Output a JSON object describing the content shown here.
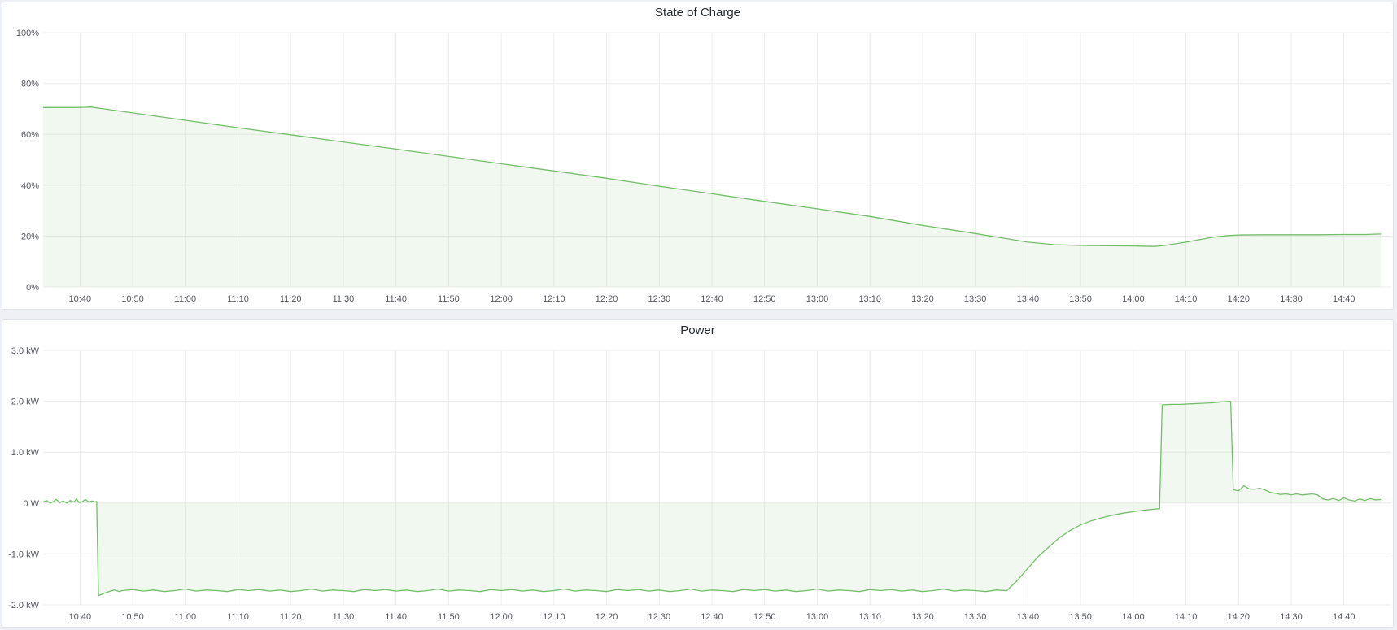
{
  "colors": {
    "series_green": "#73bf69",
    "series_fill": "rgba(115,191,105,0.10)",
    "grid": "#ececec",
    "tick_text": "#55585f",
    "title_text": "#24292e",
    "panel_bg": "#ffffff",
    "panel_border": "#dfe2ea",
    "page_bg": "#eef0f6"
  },
  "panels": [
    {
      "title": "State of Charge"
    },
    {
      "title": "Power"
    }
  ],
  "chart_data": [
    {
      "type": "area",
      "title": "State of Charge",
      "xlabel": "",
      "ylabel": "",
      "unit": "percent",
      "legend": "none",
      "grid": "on",
      "ylim": [
        0,
        100
      ],
      "y_ticks": [
        {
          "v": 0,
          "label": "0%"
        },
        {
          "v": 20,
          "label": "20%"
        },
        {
          "v": 40,
          "label": "40%"
        },
        {
          "v": 60,
          "label": "60%"
        },
        {
          "v": 80,
          "label": "80%"
        },
        {
          "v": 100,
          "label": "100%"
        }
      ],
      "x_domain": [
        "10:33",
        "14:49"
      ],
      "x_tick_labels": [
        "10:40",
        "10:50",
        "11:00",
        "11:10",
        "11:20",
        "11:30",
        "11:40",
        "11:50",
        "12:00",
        "12:10",
        "12:20",
        "12:30",
        "12:40",
        "12:50",
        "13:00",
        "13:10",
        "13:20",
        "13:30",
        "13:40",
        "13:50",
        "14:00",
        "14:10",
        "14:20",
        "14:30",
        "14:40"
      ],
      "line_color": "#73bf69",
      "fill_color": "rgba(115,191,105,0.10)",
      "points": [
        [
          "10:33",
          70.5
        ],
        [
          "10:36",
          70.5
        ],
        [
          "10:39",
          70.5
        ],
        [
          "10:41",
          70.6
        ],
        [
          "10:42",
          70.7
        ],
        [
          "10:50",
          68.4
        ],
        [
          "11:00",
          65.5
        ],
        [
          "11:10",
          62.6
        ],
        [
          "11:20",
          59.8
        ],
        [
          "11:30",
          57.0
        ],
        [
          "11:40",
          54.2
        ],
        [
          "11:50",
          51.3
        ],
        [
          "12:00",
          48.4
        ],
        [
          "12:10",
          45.6
        ],
        [
          "12:20",
          42.7
        ],
        [
          "12:30",
          39.6
        ],
        [
          "12:40",
          36.6
        ],
        [
          "12:50",
          33.6
        ],
        [
          "13:00",
          30.7
        ],
        [
          "13:10",
          27.7
        ],
        [
          "13:20",
          24.2
        ],
        [
          "13:25",
          22.6
        ],
        [
          "13:30",
          21.0
        ],
        [
          "13:35",
          19.3
        ],
        [
          "13:40",
          17.6
        ],
        [
          "13:45",
          16.6
        ],
        [
          "13:50",
          16.3
        ],
        [
          "13:55",
          16.2
        ],
        [
          "14:00",
          16.1
        ],
        [
          "14:04",
          15.9
        ],
        [
          "14:06",
          16.3
        ],
        [
          "14:10",
          17.6
        ],
        [
          "14:15",
          19.5
        ],
        [
          "14:18",
          20.2
        ],
        [
          "14:20",
          20.4
        ],
        [
          "14:25",
          20.5
        ],
        [
          "14:30",
          20.5
        ],
        [
          "14:35",
          20.5
        ],
        [
          "14:40",
          20.6
        ],
        [
          "14:44",
          20.6
        ],
        [
          "14:47",
          20.8
        ]
      ]
    },
    {
      "type": "area",
      "title": "Power",
      "xlabel": "",
      "ylabel": "",
      "unit": "watt",
      "legend": "none",
      "grid": "on",
      "ylim": [
        -2,
        3
      ],
      "y_ticks": [
        {
          "v": -2,
          "label": "-2.0 kW"
        },
        {
          "v": -1,
          "label": "-1.0 kW"
        },
        {
          "v": 0,
          "label": "0 W"
        },
        {
          "v": 1,
          "label": "1.0 kW"
        },
        {
          "v": 2,
          "label": "2.0 kW"
        },
        {
          "v": 3,
          "label": "3.0 kW"
        }
      ],
      "x_domain": [
        "10:33",
        "14:49"
      ],
      "x_tick_labels": [
        "10:40",
        "10:50",
        "11:00",
        "11:10",
        "11:20",
        "11:30",
        "11:40",
        "11:50",
        "12:00",
        "12:10",
        "12:20",
        "12:30",
        "12:40",
        "12:50",
        "13:00",
        "13:10",
        "13:20",
        "13:30",
        "13:40",
        "13:50",
        "14:00",
        "14:10",
        "14:20",
        "14:30",
        "14:40"
      ],
      "line_color": "#73bf69",
      "fill_color": "rgba(115,191,105,0.10)",
      "points": [
        [
          "10:33:00",
          0.02
        ],
        [
          "10:33:40",
          0.05
        ],
        [
          "10:34:20",
          0.0
        ],
        [
          "10:35:00",
          0.03
        ],
        [
          "10:35:30",
          0.07
        ],
        [
          "10:36:10",
          0.01
        ],
        [
          "10:36:50",
          0.04
        ],
        [
          "10:37:30",
          0.0
        ],
        [
          "10:38:10",
          0.05
        ],
        [
          "10:38:50",
          0.02
        ],
        [
          "10:39:20",
          0.08
        ],
        [
          "10:39:50",
          0.01
        ],
        [
          "10:40:30",
          0.03
        ],
        [
          "10:41:00",
          0.07
        ],
        [
          "10:41:40",
          0.02
        ],
        [
          "10:42:20",
          0.04
        ],
        [
          "10:42:50",
          0.02
        ],
        [
          "10:43:10",
          0.03
        ],
        [
          "10:43:30",
          -1.82
        ],
        [
          "10:44:00",
          -1.8
        ],
        [
          "10:44:40",
          -1.77
        ],
        [
          "10:45:30",
          -1.74
        ],
        [
          "10:46:30",
          -1.71
        ],
        [
          "10:47:30",
          -1.74
        ],
        [
          "10:48",
          -1.72
        ],
        [
          "10:50",
          -1.7
        ],
        [
          "10:52",
          -1.73
        ],
        [
          "10:54",
          -1.71
        ],
        [
          "10:56",
          -1.74
        ],
        [
          "10:58",
          -1.72
        ],
        [
          "11:00",
          -1.69
        ],
        [
          "11:02",
          -1.73
        ],
        [
          "11:04",
          -1.71
        ],
        [
          "11:06",
          -1.72
        ],
        [
          "11:08",
          -1.74
        ],
        [
          "11:10",
          -1.7
        ],
        [
          "11:12",
          -1.72
        ],
        [
          "11:14",
          -1.7
        ],
        [
          "11:16",
          -1.73
        ],
        [
          "11:18",
          -1.71
        ],
        [
          "11:20",
          -1.74
        ],
        [
          "11:22",
          -1.72
        ],
        [
          "11:24",
          -1.69
        ],
        [
          "11:26",
          -1.73
        ],
        [
          "11:28",
          -1.71
        ],
        [
          "11:30",
          -1.72
        ],
        [
          "11:32",
          -1.74
        ],
        [
          "11:34",
          -1.7
        ],
        [
          "11:36",
          -1.72
        ],
        [
          "11:38",
          -1.7
        ],
        [
          "11:40",
          -1.73
        ],
        [
          "11:42",
          -1.71
        ],
        [
          "11:44",
          -1.74
        ],
        [
          "11:46",
          -1.72
        ],
        [
          "11:48",
          -1.69
        ],
        [
          "11:50",
          -1.73
        ],
        [
          "11:52",
          -1.71
        ],
        [
          "11:54",
          -1.72
        ],
        [
          "11:56",
          -1.74
        ],
        [
          "11:58",
          -1.7
        ],
        [
          "12:00",
          -1.72
        ],
        [
          "12:02",
          -1.7
        ],
        [
          "12:04",
          -1.73
        ],
        [
          "12:06",
          -1.71
        ],
        [
          "12:08",
          -1.74
        ],
        [
          "12:10",
          -1.72
        ],
        [
          "12:12",
          -1.69
        ],
        [
          "12:14",
          -1.73
        ],
        [
          "12:16",
          -1.71
        ],
        [
          "12:18",
          -1.72
        ],
        [
          "12:20",
          -1.74
        ],
        [
          "12:22",
          -1.7
        ],
        [
          "12:24",
          -1.72
        ],
        [
          "12:26",
          -1.7
        ],
        [
          "12:28",
          -1.73
        ],
        [
          "12:30",
          -1.71
        ],
        [
          "12:32",
          -1.74
        ],
        [
          "12:34",
          -1.72
        ],
        [
          "12:36",
          -1.69
        ],
        [
          "12:38",
          -1.73
        ],
        [
          "12:40",
          -1.71
        ],
        [
          "12:42",
          -1.72
        ],
        [
          "12:44",
          -1.74
        ],
        [
          "12:46",
          -1.7
        ],
        [
          "12:48",
          -1.72
        ],
        [
          "12:50",
          -1.7
        ],
        [
          "12:52",
          -1.73
        ],
        [
          "12:54",
          -1.71
        ],
        [
          "12:56",
          -1.74
        ],
        [
          "12:58",
          -1.72
        ],
        [
          "13:00",
          -1.69
        ],
        [
          "13:02",
          -1.73
        ],
        [
          "13:04",
          -1.71
        ],
        [
          "13:06",
          -1.72
        ],
        [
          "13:08",
          -1.74
        ],
        [
          "13:10",
          -1.7
        ],
        [
          "13:12",
          -1.72
        ],
        [
          "13:14",
          -1.7
        ],
        [
          "13:16",
          -1.73
        ],
        [
          "13:18",
          -1.71
        ],
        [
          "13:20",
          -1.74
        ],
        [
          "13:22",
          -1.72
        ],
        [
          "13:24",
          -1.69
        ],
        [
          "13:26",
          -1.73
        ],
        [
          "13:28",
          -1.71
        ],
        [
          "13:30",
          -1.72
        ],
        [
          "13:32",
          -1.74
        ],
        [
          "13:34",
          -1.71
        ],
        [
          "13:36",
          -1.72
        ],
        [
          "13:38",
          -1.52
        ],
        [
          "13:40",
          -1.28
        ],
        [
          "13:42",
          -1.05
        ],
        [
          "13:44",
          -0.86
        ],
        [
          "13:46",
          -0.68
        ],
        [
          "13:48",
          -0.54
        ],
        [
          "13:50",
          -0.43
        ],
        [
          "13:52",
          -0.35
        ],
        [
          "13:54",
          -0.29
        ],
        [
          "13:56",
          -0.24
        ],
        [
          "13:58",
          -0.2
        ],
        [
          "14:00",
          -0.17
        ],
        [
          "14:02",
          -0.14
        ],
        [
          "14:04",
          -0.12
        ],
        [
          "14:05",
          -0.11
        ],
        [
          "14:05:30",
          1.93
        ],
        [
          "14:07",
          1.94
        ],
        [
          "14:09",
          1.94
        ],
        [
          "14:11",
          1.95
        ],
        [
          "14:13",
          1.96
        ],
        [
          "14:15",
          1.97
        ],
        [
          "14:17",
          1.99
        ],
        [
          "14:18:30",
          2.0
        ],
        [
          "14:19",
          0.26
        ],
        [
          "14:20",
          0.24
        ],
        [
          "14:21",
          0.34
        ],
        [
          "14:22",
          0.28
        ],
        [
          "14:23",
          0.27
        ],
        [
          "14:24",
          0.29
        ],
        [
          "14:25",
          0.26
        ],
        [
          "14:26",
          0.21
        ],
        [
          "14:27",
          0.19
        ],
        [
          "14:28",
          0.17
        ],
        [
          "14:29",
          0.18
        ],
        [
          "14:30",
          0.16
        ],
        [
          "14:31",
          0.18
        ],
        [
          "14:32",
          0.16
        ],
        [
          "14:33",
          0.17
        ],
        [
          "14:34",
          0.18
        ],
        [
          "14:35",
          0.16
        ],
        [
          "14:36",
          0.08
        ],
        [
          "14:37",
          0.06
        ],
        [
          "14:38",
          0.09
        ],
        [
          "14:39",
          0.05
        ],
        [
          "14:40",
          0.1
        ],
        [
          "14:41",
          0.06
        ],
        [
          "14:42",
          0.04
        ],
        [
          "14:43",
          0.08
        ],
        [
          "14:44",
          0.05
        ],
        [
          "14:45",
          0.09
        ],
        [
          "14:46",
          0.06
        ],
        [
          "14:47",
          0.07
        ]
      ]
    }
  ]
}
